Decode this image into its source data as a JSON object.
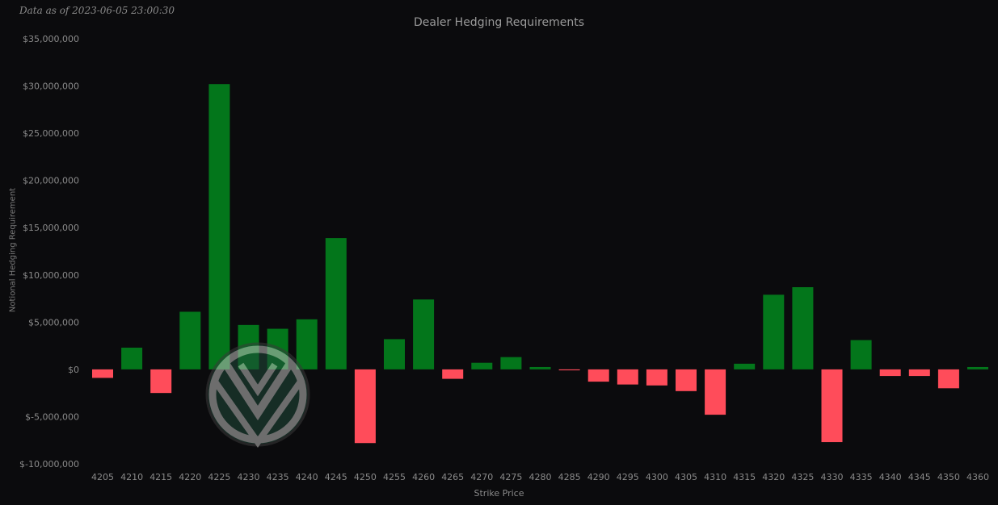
{
  "header": {
    "timestamp": "Data as of 2023-06-05 23:00:30"
  },
  "colors": {
    "positive": "#03761b",
    "negative": "#ff4c5a",
    "background": "#0b0b0d"
  },
  "chart_data": {
    "type": "bar",
    "title": "Dealer Hedging Requirements",
    "xlabel": "Strike Price",
    "ylabel": "Notional Hedging Requirement",
    "ylim": [
      -10000000,
      35000000
    ],
    "yticks": [
      35000000,
      30000000,
      25000000,
      20000000,
      15000000,
      10000000,
      5000000,
      0,
      -5000000,
      -10000000
    ],
    "ytick_labels": [
      "$35,000,000",
      "$30,000,000",
      "$25,000,000",
      "$20,000,000",
      "$15,000,000",
      "$10,000,000",
      "$5,000,000",
      "$0",
      "$-5,000,000",
      "$-10,000,000"
    ],
    "grid": false,
    "categories": [
      "4205",
      "4210",
      "4215",
      "4220",
      "4225",
      "4230",
      "4235",
      "4240",
      "4245",
      "4250",
      "4255",
      "4260",
      "4265",
      "4270",
      "4275",
      "4280",
      "4285",
      "4290",
      "4295",
      "4300",
      "4305",
      "4310",
      "4315",
      "4320",
      "4325",
      "4330",
      "4335",
      "4340",
      "4345",
      "4350",
      "4360"
    ],
    "values": [
      -900000,
      2300000,
      -2500000,
      6100000,
      30200000,
      4700000,
      4300000,
      5300000,
      13900000,
      -7800000,
      3200000,
      7400000,
      -1000000,
      700000,
      1300000,
      250000,
      -100000,
      -1300000,
      -1600000,
      -1700000,
      -2300000,
      -4800000,
      600000,
      7900000,
      8700000,
      -7700000,
      3100000,
      -700000,
      -700000,
      -2000000,
      250000
    ]
  }
}
